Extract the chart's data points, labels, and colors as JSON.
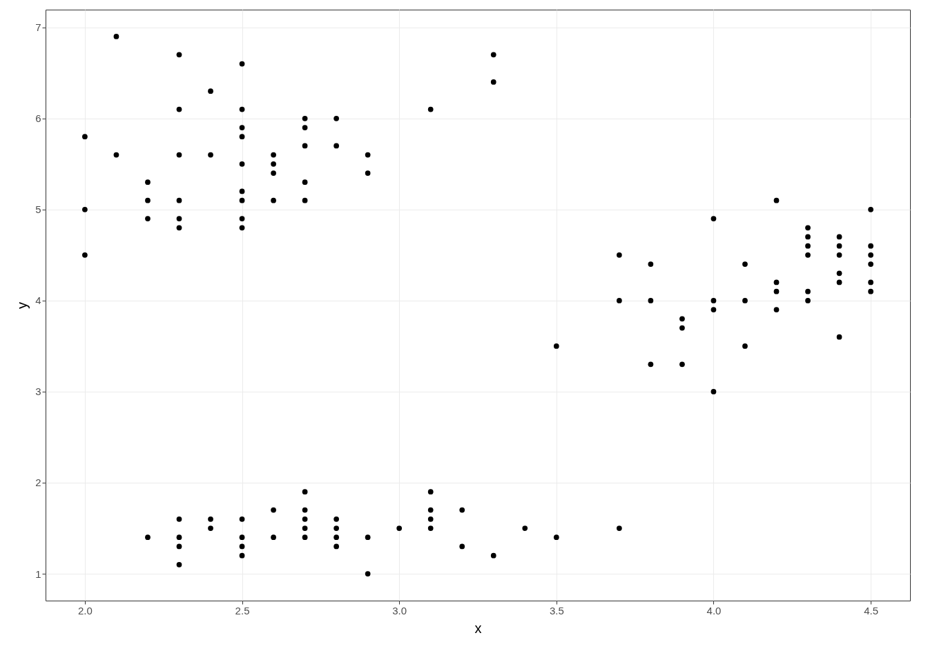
{
  "chart_data": {
    "type": "scatter",
    "xlabel": "x",
    "ylabel": "y",
    "x": [
      2.0,
      2.0,
      2.0,
      2.1,
      2.1,
      2.2,
      2.2,
      2.2,
      2.2,
      2.3,
      2.3,
      2.3,
      2.3,
      2.3,
      2.3,
      2.3,
      2.3,
      2.3,
      2.3,
      2.4,
      2.4,
      2.4,
      2.4,
      2.5,
      2.5,
      2.5,
      2.5,
      2.5,
      2.5,
      2.5,
      2.5,
      2.5,
      2.5,
      2.5,
      2.5,
      2.5,
      2.6,
      2.6,
      2.6,
      2.6,
      2.6,
      2.6,
      2.7,
      2.7,
      2.7,
      2.7,
      2.7,
      2.7,
      2.7,
      2.7,
      2.7,
      2.7,
      2.8,
      2.8,
      2.8,
      2.8,
      2.8,
      2.8,
      2.9,
      2.9,
      2.9,
      2.9,
      3.0,
      3.1,
      3.1,
      3.1,
      3.1,
      3.1,
      3.2,
      3.2,
      3.3,
      3.3,
      3.3,
      3.4,
      3.5,
      3.5,
      3.7,
      3.7,
      3.7,
      3.8,
      3.8,
      3.8,
      3.9,
      3.9,
      3.9,
      4.0,
      4.0,
      4.0,
      4.0,
      4.1,
      4.1,
      4.1,
      4.2,
      4.2,
      4.2,
      4.2,
      4.3,
      4.3,
      4.3,
      4.3,
      4.3,
      4.3,
      4.4,
      4.4,
      4.4,
      4.4,
      4.4,
      4.4,
      4.5,
      4.5,
      4.5,
      4.5,
      4.5,
      4.5
    ],
    "values": [
      5.8,
      5.0,
      4.5,
      6.9,
      5.6,
      5.3,
      5.1,
      4.9,
      1.4,
      6.7,
      6.1,
      5.6,
      5.1,
      4.9,
      4.8,
      1.6,
      1.4,
      1.3,
      1.1,
      6.3,
      5.6,
      1.6,
      1.5,
      6.6,
      6.1,
      5.9,
      5.8,
      5.5,
      5.2,
      5.1,
      4.9,
      4.8,
      1.6,
      1.4,
      1.3,
      1.2,
      5.6,
      5.5,
      5.4,
      5.1,
      1.7,
      1.4,
      6.0,
      5.9,
      5.7,
      5.3,
      5.1,
      1.9,
      1.7,
      1.6,
      1.5,
      1.4,
      6.0,
      5.7,
      1.6,
      1.5,
      1.4,
      1.3,
      5.6,
      5.4,
      1.4,
      1.0,
      1.5,
      6.1,
      1.9,
      1.7,
      1.6,
      1.5,
      1.7,
      1.3,
      6.7,
      6.4,
      1.2,
      1.5,
      3.5,
      1.4,
      4.5,
      4.0,
      1.5,
      4.4,
      4.0,
      3.3,
      3.8,
      3.7,
      3.3,
      4.9,
      4.0,
      3.9,
      3.0,
      4.4,
      4.0,
      3.5,
      5.1,
      4.2,
      4.1,
      3.9,
      4.8,
      4.7,
      4.6,
      4.5,
      4.1,
      4.0,
      4.7,
      4.6,
      4.5,
      4.3,
      4.2,
      3.6,
      5.0,
      4.6,
      4.5,
      4.4,
      4.2,
      4.1
    ],
    "color": "#000000",
    "marker": "circle",
    "xlim": [
      1.875,
      4.625
    ],
    "xticks": [
      {
        "value": 2,
        "label": "2.0"
      },
      {
        "value": 2.5,
        "label": "2.5"
      },
      {
        "value": 3,
        "label": "3.0"
      },
      {
        "value": 3.5,
        "label": "3.5"
      },
      {
        "value": 4,
        "label": "4.0"
      },
      {
        "value": 4.5,
        "label": "4.5"
      }
    ],
    "ylim": [
      0.705,
      7.195
    ],
    "yticks": [
      1,
      2,
      3,
      4,
      5,
      6,
      7
    ],
    "grid": true
  }
}
